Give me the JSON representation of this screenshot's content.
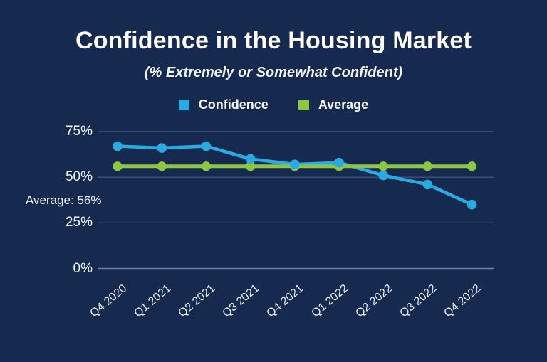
{
  "title": "Confidence in the Housing Market",
  "subtitle": "(% Extremely or Somewhat Confident)",
  "annotation": "Average: 56%",
  "colors": {
    "background": "#16294e",
    "confidence": "#29abe2",
    "average": "#8dc63f",
    "gridline": "#8b9cbd",
    "text": "#ffffff"
  },
  "legend": [
    {
      "label": "Confidence",
      "color": "#29abe2"
    },
    {
      "label": "Average",
      "color": "#8dc63f"
    }
  ],
  "chart_data": {
    "type": "line",
    "categories": [
      "Q4 2020",
      "Q1 2021",
      "Q2 2021",
      "Q3 2021",
      "Q4 2021",
      "Q1 2022",
      "Q2 2022",
      "Q3 2022",
      "Q4 2022"
    ],
    "series": [
      {
        "name": "Confidence",
        "color": "#29abe2",
        "values": [
          67,
          66,
          67,
          60,
          57,
          58,
          51,
          46,
          35
        ]
      },
      {
        "name": "Average",
        "color": "#8dc63f",
        "values": [
          56,
          56,
          56,
          56,
          56,
          56,
          56,
          56,
          56
        ]
      }
    ],
    "title": "Confidence in the Housing Market",
    "subtitle": "(% Extremely or Somewhat Confident)",
    "xlabel": "",
    "ylabel": "",
    "ylim": [
      0,
      80
    ],
    "yticks": [
      {
        "label": "0%",
        "value": 0
      },
      {
        "label": "25%",
        "value": 25
      },
      {
        "label": "50%",
        "value": 50
      },
      {
        "label": "75%",
        "value": 75
      }
    ],
    "average_value": 56,
    "annotation": "Average: 56%",
    "grid": "horizontal",
    "legend_position": "top-center"
  }
}
